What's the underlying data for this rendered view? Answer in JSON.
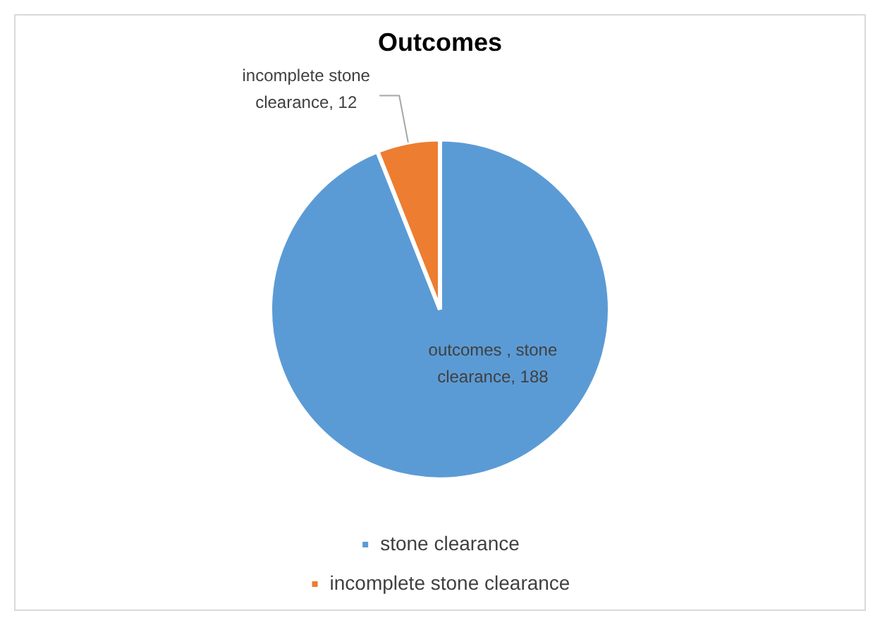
{
  "chart_data": {
    "type": "pie",
    "title": "Outcomes",
    "categories": [
      "stone clearance",
      "incomplete stone clearance"
    ],
    "values": [
      188,
      12
    ],
    "colors": [
      "#5b9bd5",
      "#ed7d31"
    ],
    "value_labels": [
      "outcomes , stone clearance, 188",
      "incomplete stone clearance, 12"
    ],
    "legend": "bottom"
  }
}
